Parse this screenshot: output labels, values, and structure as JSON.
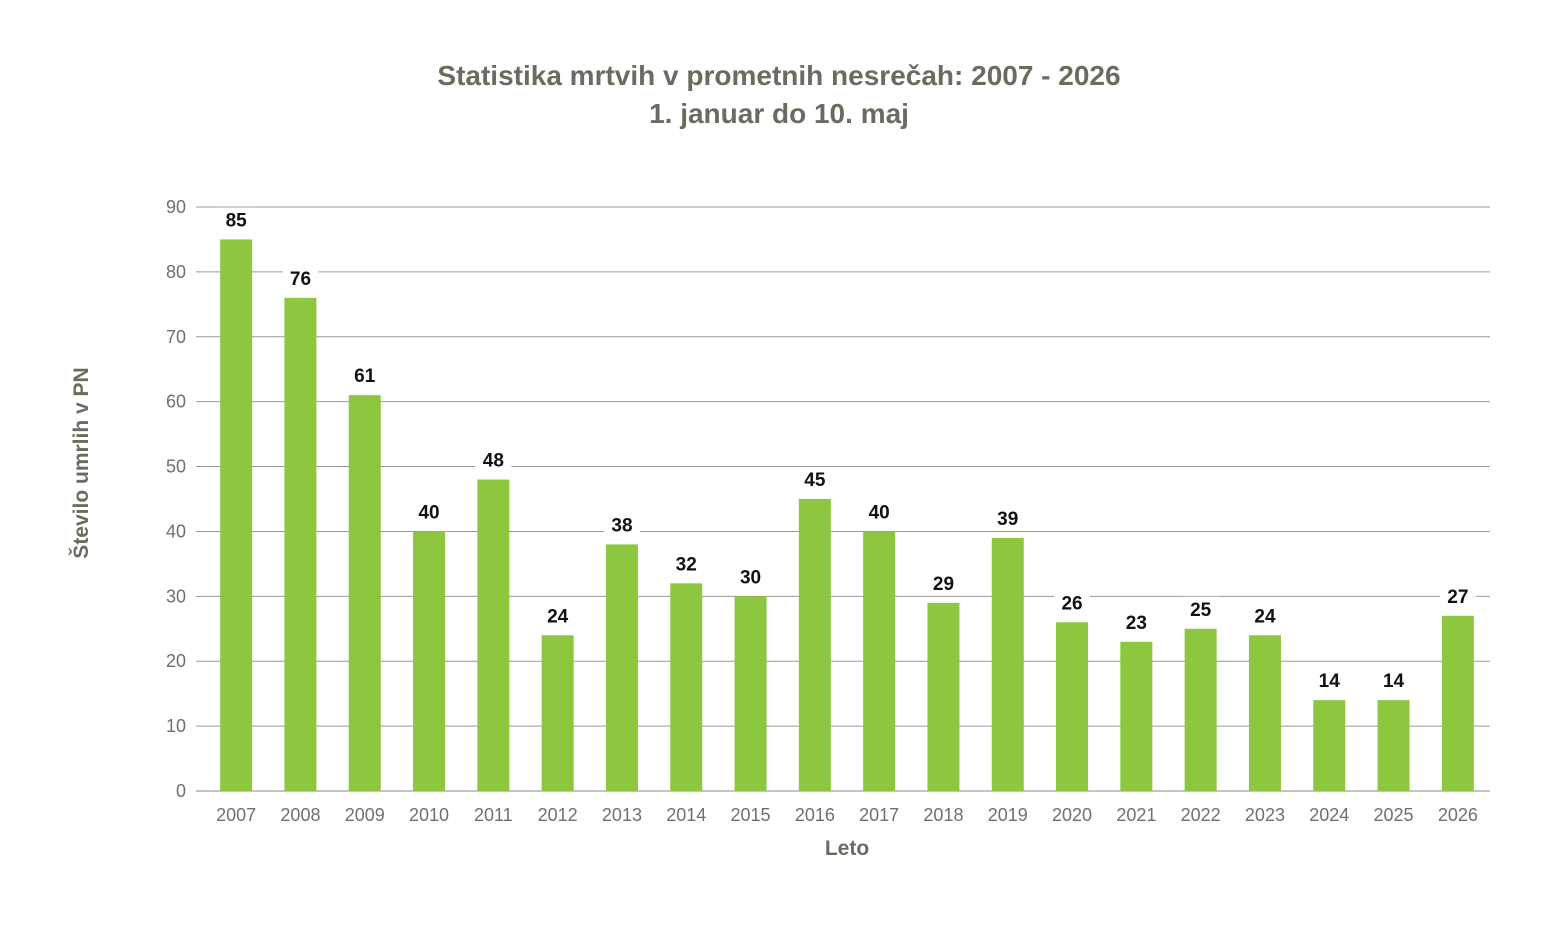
{
  "chart_data": {
    "type": "bar",
    "title": "Statistika mrtvih v prometnih nesrečah: 2007 - 2026",
    "subtitle": "1. januar do 10. maj",
    "xlabel": "Leto",
    "ylabel": "Število umrlih v PN",
    "ylim": [
      0,
      90
    ],
    "yticks": [
      0,
      10,
      20,
      30,
      40,
      50,
      60,
      70,
      80,
      90
    ],
    "grid": true,
    "categories": [
      "2007",
      "2008",
      "2009",
      "2010",
      "2011",
      "2012",
      "2013",
      "2014",
      "2015",
      "2016",
      "2017",
      "2018",
      "2019",
      "2020",
      "2021",
      "2022",
      "2023",
      "2024",
      "2025",
      "2026"
    ],
    "values": [
      85,
      76,
      61,
      40,
      48,
      24,
      38,
      32,
      30,
      45,
      40,
      29,
      39,
      26,
      23,
      25,
      24,
      14,
      14,
      27
    ],
    "bar_color": "#8dc63f",
    "label_color": "#111111",
    "highlight_label_color": "#e0201b",
    "highlight_category": "2026"
  }
}
